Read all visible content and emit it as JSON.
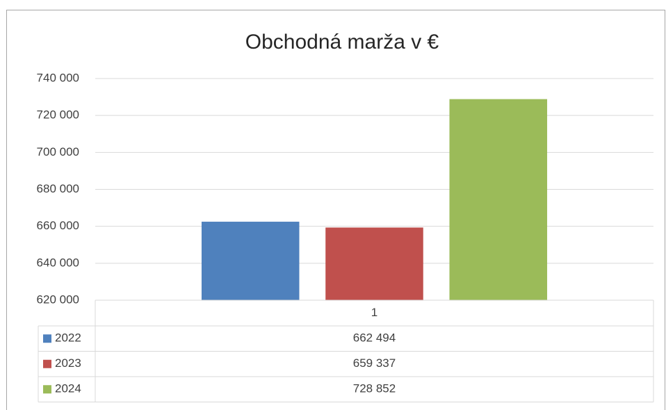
{
  "chart_data": {
    "type": "bar",
    "title": "Obchodná marža v €",
    "categories": [
      "1"
    ],
    "series": [
      {
        "name": "2022",
        "color": "#4f81bd",
        "values": [
          662494
        ],
        "value_labels": [
          "662 494"
        ]
      },
      {
        "name": "2023",
        "color": "#c0504d",
        "values": [
          659337
        ],
        "value_labels": [
          "659 337"
        ]
      },
      {
        "name": "2024",
        "color": "#9bbb59",
        "values": [
          728852
        ],
        "value_labels": [
          "728 852"
        ]
      }
    ],
    "ylim": [
      620000,
      740000
    ],
    "yticks": [
      {
        "value": 620000,
        "label": "620 000"
      },
      {
        "value": 640000,
        "label": "640 000"
      },
      {
        "value": 660000,
        "label": "660 000"
      },
      {
        "value": 680000,
        "label": "680 000"
      },
      {
        "value": 700000,
        "label": "700 000"
      },
      {
        "value": 720000,
        "label": "720 000"
      },
      {
        "value": 740000,
        "label": "740 000"
      }
    ],
    "grid": true
  }
}
